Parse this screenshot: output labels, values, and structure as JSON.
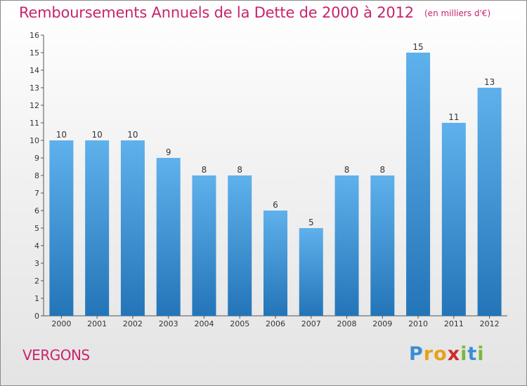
{
  "header": {
    "title": "Remboursements Annuels de la Dette de 2000 à 2012",
    "unit": "(en milliers d'€)"
  },
  "footer": {
    "commune": "VERGONS",
    "brand": "Proxiti",
    "brand_letters": [
      {
        "ch": "P",
        "color": "#3a8ed4"
      },
      {
        "ch": "r",
        "color": "#e8a01c"
      },
      {
        "ch": "o",
        "color": "#e8a01c"
      },
      {
        "ch": "x",
        "color": "#cf2a2a"
      },
      {
        "ch": "i",
        "color": "#7ab83a"
      },
      {
        "ch": "t",
        "color": "#3a8ed4"
      },
      {
        "ch": "i",
        "color": "#7ab83a"
      }
    ]
  },
  "chart_data": {
    "type": "bar",
    "categories": [
      "2000",
      "2001",
      "2002",
      "2003",
      "2004",
      "2005",
      "2006",
      "2007",
      "2008",
      "2009",
      "2010",
      "2011",
      "2012"
    ],
    "values": [
      10,
      10,
      10,
      9,
      8,
      8,
      6,
      5,
      8,
      8,
      15,
      11,
      13
    ],
    "ylim": [
      0,
      16
    ],
    "yticks": [
      0,
      1,
      2,
      3,
      4,
      5,
      6,
      7,
      8,
      9,
      10,
      11,
      12,
      13,
      14,
      15,
      16
    ],
    "grid": false,
    "legend": "none",
    "colors": {
      "bar_top": "#5fb1ec",
      "bar_bottom": "#2375b8",
      "axis": "#555555",
      "label": "#333333"
    }
  }
}
